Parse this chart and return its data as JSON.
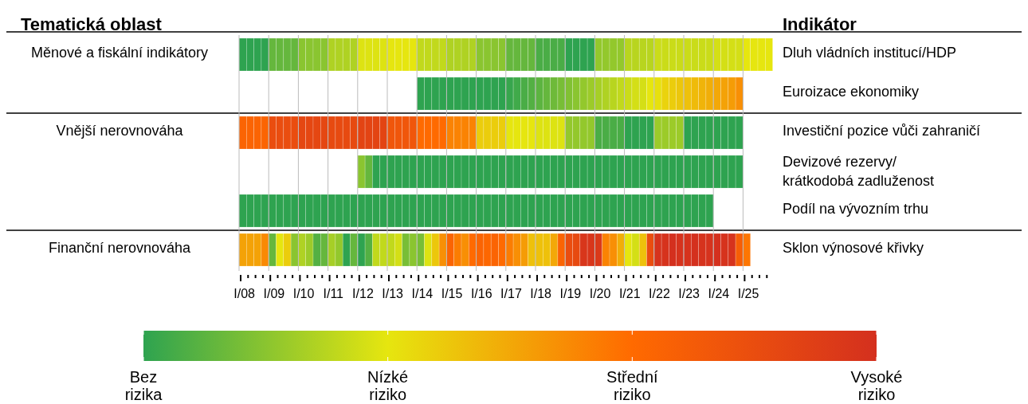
{
  "chart_data": {
    "type": "heatmap",
    "ylabel": "Tematická oblast",
    "y2label": "Indikátor",
    "categories": [
      "I/08",
      null,
      null,
      null,
      "I/09",
      null,
      null,
      null,
      "I/10",
      null,
      null,
      null,
      "I/11",
      null,
      null,
      null,
      "I/12",
      null,
      null,
      null,
      "I/13",
      null,
      null,
      null,
      "I/14",
      null,
      null,
      null,
      "I/15",
      null,
      null,
      null,
      "I/16",
      null,
      null,
      null,
      "I/17",
      null,
      null,
      null,
      "I/18",
      null,
      null,
      null,
      "I/19",
      null,
      null,
      null,
      "I/20",
      null,
      null,
      null,
      "I/21",
      null,
      null,
      null,
      "I/22",
      null,
      null,
      null,
      "I/23",
      null,
      null,
      null,
      "I/24",
      null,
      null,
      null,
      "I/25",
      null,
      null,
      null
    ],
    "y_categories": [
      "Měnové a fiskální indikátory",
      null,
      "Vnější nerovnováha",
      null,
      null,
      "Finanční nerovnováha"
    ],
    "y2_categories": [
      "Dluh vládních institucí/HDP",
      "Euroizace ekonomiky",
      "Investiční pozice vůči zahraničí",
      "Devizové rezervy/ krátkodobá zadluženost",
      "Podíl na vývozním trhu",
      "Sklon výnosové křivky"
    ],
    "cells": [
      [
        0,
        0,
        0,
        0,
        0.3,
        0.3,
        0.3,
        0.3,
        0.5,
        0.5,
        0.5,
        0.5,
        0.7,
        0.7,
        0.7,
        0.7,
        0.95,
        0.95,
        0.95,
        0.95,
        1,
        1,
        1,
        1,
        0.8,
        0.8,
        0.8,
        0.8,
        0.7,
        0.7,
        0.7,
        0.7,
        0.5,
        0.5,
        0.5,
        0.5,
        0.3,
        0.3,
        0.3,
        0.3,
        0.15,
        0.15,
        0.15,
        0.15,
        0,
        0,
        0,
        0,
        0.55,
        0.55,
        0.55,
        0.55,
        0.75,
        0.75,
        0.75,
        0.75,
        0.85,
        0.85,
        0.85,
        0.85,
        0.85,
        0.85,
        0.85,
        0.85,
        0.9,
        0.9,
        0.9,
        0.9,
        1,
        1,
        1,
        1
      ],
      [
        null,
        null,
        null,
        null,
        null,
        null,
        null,
        null,
        null,
        null,
        null,
        null,
        null,
        null,
        null,
        null,
        null,
        null,
        null,
        null,
        null,
        null,
        null,
        null,
        0,
        0,
        0,
        0,
        0,
        0,
        0,
        0,
        0,
        0,
        0,
        0,
        0.05,
        0.1,
        0.15,
        0.2,
        0.25,
        0.3,
        0.35,
        0.4,
        0.45,
        0.5,
        0.55,
        0.6,
        0.65,
        0.7,
        0.75,
        0.8,
        0.85,
        0.9,
        0.9,
        1,
        1.05,
        1.15,
        1.2,
        1.25,
        1.3,
        1.35,
        1.4,
        1.45,
        1.5,
        1.55,
        1.6,
        1.7,
        null,
        null,
        null,
        null
      ],
      [
        2.1,
        2.1,
        2.1,
        2.1,
        2.5,
        2.5,
        2.5,
        2.5,
        2.6,
        2.6,
        2.6,
        2.6,
        2.55,
        2.55,
        2.55,
        2.55,
        2.65,
        2.65,
        2.65,
        2.65,
        2.35,
        2.35,
        2.35,
        2.35,
        2,
        2,
        2,
        2,
        1.8,
        1.8,
        1.8,
        1.8,
        1.2,
        1.2,
        1.2,
        1.2,
        1,
        1,
        1,
        1,
        0.95,
        0.95,
        0.95,
        0.95,
        0.55,
        0.55,
        0.55,
        0.55,
        0.15,
        0.15,
        0.15,
        0.15,
        0,
        0,
        0,
        0,
        0.6,
        0.6,
        0.6,
        0.6,
        0,
        0,
        0,
        0,
        0,
        0,
        0,
        0,
        null,
        null,
        null,
        null
      ],
      [
        null,
        null,
        null,
        null,
        null,
        null,
        null,
        null,
        null,
        null,
        null,
        null,
        null,
        null,
        null,
        null,
        0.5,
        0.3,
        0,
        0,
        0,
        0,
        0,
        0,
        0,
        0,
        0,
        0,
        0,
        0,
        0,
        0,
        0,
        0,
        0,
        0,
        0,
        0,
        0,
        0,
        0,
        0,
        0,
        0,
        0,
        0,
        0,
        0,
        0,
        0,
        0,
        0,
        0,
        0,
        0,
        0,
        0,
        0,
        0,
        0,
        0,
        0,
        0,
        0,
        0,
        0,
        0,
        0,
        null,
        null,
        null,
        null
      ],
      [
        0,
        0,
        0,
        0,
        0,
        0,
        0,
        0,
        0,
        0,
        0,
        0,
        0,
        0,
        0,
        0,
        0,
        0,
        0,
        0,
        0,
        0,
        0,
        0,
        0,
        0,
        0,
        0,
        0,
        0,
        0,
        0,
        0,
        0,
        0,
        0,
        0,
        0,
        0,
        0,
        0,
        0,
        0,
        0,
        0,
        0,
        0,
        0,
        0,
        0,
        0,
        0,
        0,
        0,
        0,
        0,
        0,
        0,
        0,
        0,
        0,
        0,
        0,
        0,
        null,
        null,
        null,
        null,
        null,
        null,
        null,
        null
      ],
      [
        1.55,
        1.55,
        1.55,
        1.75,
        0.3,
        1,
        1.2,
        0.5,
        0.7,
        0.6,
        0.2,
        0.3,
        0.65,
        0.55,
        0,
        0.3,
        0,
        0.2,
        0.8,
        0.8,
        0.8,
        0.9,
        0.4,
        0.5,
        0.4,
        0.95,
        1.25,
        1.7,
        2.1,
        1.85,
        1.7,
        2,
        2.1,
        2.05,
        2.1,
        2,
        1.85,
        1.7,
        1.6,
        1.3,
        1.3,
        1.3,
        1.5,
        2.1,
        2.5,
        2.55,
        2.9,
        2.9,
        2.85,
        1.8,
        1.7,
        1.45,
        1,
        0.9,
        1.3,
        2.5,
        2.95,
        2.95,
        3,
        2.95,
        2.95,
        3,
        2.95,
        2.95,
        3,
        2.95,
        2.95,
        2.2,
        1.9,
        null,
        null,
        null
      ]
    ],
    "clim": [
      0,
      3
    ],
    "cticks": [
      {
        "value": 0,
        "label": "Bez rizika"
      },
      {
        "value": 1,
        "label": "Nízké riziko"
      },
      {
        "value": 2,
        "label": "Střední riziko"
      },
      {
        "value": 3,
        "label": "Vysoké riziko"
      }
    ]
  }
}
